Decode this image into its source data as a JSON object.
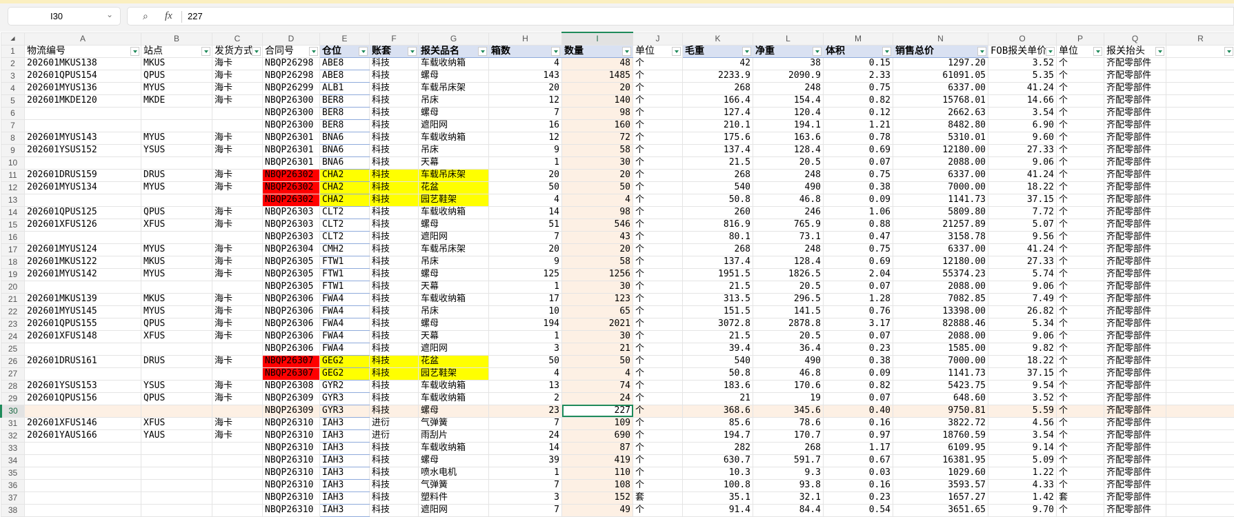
{
  "name_box": "I30",
  "formula_value": "227",
  "icons": {
    "zoom": "zoom-icon",
    "fx": "function-icon",
    "dropdown": "chevron-down-icon",
    "filter": "filter-dropdown-icon"
  },
  "colors": {
    "duplicate_contract": "#ff0000",
    "duplicate_rows": "#ffff00",
    "header_fill": "#d9e1f2",
    "selection": "#1e8a5a",
    "selected_column_fill": "#fdf0e4"
  },
  "fx_label": "fx",
  "columns": [
    "A",
    "B",
    "C",
    "D",
    "E",
    "F",
    "G",
    "H",
    "I",
    "J",
    "K",
    "L",
    "M",
    "N",
    "O",
    "P",
    "Q",
    "R"
  ],
  "headers": [
    "物流编号",
    "站点",
    "发货方式",
    "合同号",
    "仓位",
    "账套",
    "报关品名",
    "箱数",
    "数量",
    "单位",
    "毛重",
    "净重",
    "体积",
    "销售总价",
    "FOB报关单价",
    "单位",
    "报关抬头",
    ""
  ],
  "rows": [
    [
      "202601MKUS138",
      "MKUS",
      "海卡",
      "NBQP26298",
      "ABE8",
      "科技",
      "车载收纳箱",
      "4",
      "48",
      "个",
      "42",
      "38",
      "0.15",
      "1297.20",
      "3.52",
      "个",
      "齐配零部件"
    ],
    [
      "202601QPUS154",
      "QPUS",
      "海卡",
      "NBQP26298",
      "ABE8",
      "科技",
      "螺母",
      "143",
      "1485",
      "个",
      "2233.9",
      "2090.9",
      "2.33",
      "61091.05",
      "5.35",
      "个",
      "齐配零部件"
    ],
    [
      "202601MYUS136",
      "MYUS",
      "海卡",
      "NBQP26299",
      "ALB1",
      "科技",
      "车载吊床架",
      "20",
      "20",
      "个",
      "268",
      "248",
      "0.75",
      "6337.00",
      "41.24",
      "个",
      "齐配零部件"
    ],
    [
      "202601MKDE120",
      "MKDE",
      "海卡",
      "NBQP26300",
      "BER8",
      "科技",
      "吊床",
      "12",
      "140",
      "个",
      "166.4",
      "154.4",
      "0.82",
      "15768.01",
      "14.66",
      "个",
      "齐配零部件"
    ],
    [
      "",
      "",
      "",
      "NBQP26300",
      "BER8",
      "科技",
      "螺母",
      "7",
      "98",
      "个",
      "127.4",
      "120.4",
      "0.12",
      "2662.63",
      "3.54",
      "个",
      "齐配零部件"
    ],
    [
      "",
      "",
      "",
      "NBQP26300",
      "BER8",
      "科技",
      "遮阳网",
      "16",
      "160",
      "个",
      "210.1",
      "194.1",
      "1.21",
      "8482.80",
      "6.90",
      "个",
      "齐配零部件"
    ],
    [
      "202601MYUS143",
      "MYUS",
      "海卡",
      "NBQP26301",
      "BNA6",
      "科技",
      "车载收纳箱",
      "12",
      "72",
      "个",
      "175.6",
      "163.6",
      "0.78",
      "5310.01",
      "9.60",
      "个",
      "齐配零部件"
    ],
    [
      "202601YSUS152",
      "YSUS",
      "海卡",
      "NBQP26301",
      "BNA6",
      "科技",
      "吊床",
      "9",
      "58",
      "个",
      "137.4",
      "128.4",
      "0.69",
      "12180.00",
      "27.33",
      "个",
      "齐配零部件"
    ],
    [
      "",
      "",
      "",
      "NBQP26301",
      "BNA6",
      "科技",
      "天幕",
      "1",
      "30",
      "个",
      "21.5",
      "20.5",
      "0.07",
      "2088.00",
      "9.06",
      "个",
      "齐配零部件"
    ],
    [
      "202601DRUS159",
      "DRUS",
      "海卡",
      "NBQP26302",
      "CHA2",
      "科技",
      "车载吊床架",
      "20",
      "20",
      "个",
      "268",
      "248",
      "0.75",
      "6337.00",
      "41.24",
      "个",
      "齐配零部件"
    ],
    [
      "202601MYUS134",
      "MYUS",
      "海卡",
      "NBQP26302",
      "CHA2",
      "科技",
      "花盆",
      "50",
      "50",
      "个",
      "540",
      "490",
      "0.38",
      "7000.00",
      "18.22",
      "个",
      "齐配零部件"
    ],
    [
      "",
      "",
      "",
      "NBQP26302",
      "CHA2",
      "科技",
      "园艺鞋架",
      "4",
      "4",
      "个",
      "50.8",
      "46.8",
      "0.09",
      "1141.73",
      "37.15",
      "个",
      "齐配零部件"
    ],
    [
      "202601QPUS125",
      "QPUS",
      "海卡",
      "NBQP26303",
      "CLT2",
      "科技",
      "车载收纳箱",
      "14",
      "98",
      "个",
      "260",
      "246",
      "1.06",
      "5809.80",
      "7.72",
      "个",
      "齐配零部件"
    ],
    [
      "202601XFUS126",
      "XFUS",
      "海卡",
      "NBQP26303",
      "CLT2",
      "科技",
      "螺母",
      "51",
      "546",
      "个",
      "816.9",
      "765.9",
      "0.88",
      "21257.89",
      "5.07",
      "个",
      "齐配零部件"
    ],
    [
      "",
      "",
      "",
      "NBQP26303",
      "CLT2",
      "科技",
      "遮阳网",
      "7",
      "43",
      "个",
      "80.1",
      "73.1",
      "0.47",
      "3158.78",
      "9.56",
      "个",
      "齐配零部件"
    ],
    [
      "202601MYUS124",
      "MYUS",
      "海卡",
      "NBQP26304",
      "CMH2",
      "科技",
      "车载吊床架",
      "20",
      "20",
      "个",
      "268",
      "248",
      "0.75",
      "6337.00",
      "41.24",
      "个",
      "齐配零部件"
    ],
    [
      "202601MKUS122",
      "MKUS",
      "海卡",
      "NBQP26305",
      "FTW1",
      "科技",
      "吊床",
      "9",
      "58",
      "个",
      "137.4",
      "128.4",
      "0.69",
      "12180.00",
      "27.33",
      "个",
      "齐配零部件"
    ],
    [
      "202601MYUS142",
      "MYUS",
      "海卡",
      "NBQP26305",
      "FTW1",
      "科技",
      "螺母",
      "125",
      "1256",
      "个",
      "1951.5",
      "1826.5",
      "2.04",
      "55374.23",
      "5.74",
      "个",
      "齐配零部件"
    ],
    [
      "",
      "",
      "",
      "NBQP26305",
      "FTW1",
      "科技",
      "天幕",
      "1",
      "30",
      "个",
      "21.5",
      "20.5",
      "0.07",
      "2088.00",
      "9.06",
      "个",
      "齐配零部件"
    ],
    [
      "202601MKUS139",
      "MKUS",
      "海卡",
      "NBQP26306",
      "FWA4",
      "科技",
      "车载收纳箱",
      "17",
      "123",
      "个",
      "313.5",
      "296.5",
      "1.28",
      "7082.85",
      "7.49",
      "个",
      "齐配零部件"
    ],
    [
      "202601MYUS145",
      "MYUS",
      "海卡",
      "NBQP26306",
      "FWA4",
      "科技",
      "吊床",
      "10",
      "65",
      "个",
      "151.5",
      "141.5",
      "0.76",
      "13398.00",
      "26.82",
      "个",
      "齐配零部件"
    ],
    [
      "202601QPUS155",
      "QPUS",
      "海卡",
      "NBQP26306",
      "FWA4",
      "科技",
      "螺母",
      "194",
      "2021",
      "个",
      "3072.8",
      "2878.8",
      "3.17",
      "82888.46",
      "5.34",
      "个",
      "齐配零部件"
    ],
    [
      "202601XFUS148",
      "XFUS",
      "海卡",
      "NBQP26306",
      "FWA4",
      "科技",
      "天幕",
      "1",
      "30",
      "个",
      "21.5",
      "20.5",
      "0.07",
      "2088.00",
      "9.06",
      "个",
      "齐配零部件"
    ],
    [
      "",
      "",
      "",
      "NBQP26306",
      "FWA4",
      "科技",
      "遮阳网",
      "3",
      "21",
      "个",
      "39.4",
      "36.4",
      "0.23",
      "1585.00",
      "9.82",
      "个",
      "齐配零部件"
    ],
    [
      "202601DRUS161",
      "DRUS",
      "海卡",
      "NBQP26307",
      "GEG2",
      "科技",
      "花盆",
      "50",
      "50",
      "个",
      "540",
      "490",
      "0.38",
      "7000.00",
      "18.22",
      "个",
      "齐配零部件"
    ],
    [
      "",
      "",
      "",
      "NBQP26307",
      "GEG2",
      "科技",
      "园艺鞋架",
      "4",
      "4",
      "个",
      "50.8",
      "46.8",
      "0.09",
      "1141.73",
      "37.15",
      "个",
      "齐配零部件"
    ],
    [
      "202601YSUS153",
      "YSUS",
      "海卡",
      "NBQP26308",
      "GYR2",
      "科技",
      "车载收纳箱",
      "13",
      "74",
      "个",
      "183.6",
      "170.6",
      "0.82",
      "5423.75",
      "9.54",
      "个",
      "齐配零部件"
    ],
    [
      "202601QPUS156",
      "QPUS",
      "海卡",
      "NBQP26309",
      "GYR3",
      "科技",
      "车载收纳箱",
      "2",
      "24",
      "个",
      "21",
      "19",
      "0.07",
      "648.60",
      "3.52",
      "个",
      "齐配零部件"
    ],
    [
      "",
      "",
      "",
      "NBQP26309",
      "GYR3",
      "科技",
      "螺母",
      "23",
      "227",
      "个",
      "368.6",
      "345.6",
      "0.40",
      "9750.81",
      "5.59",
      "个",
      "齐配零部件"
    ],
    [
      "202601XFUS146",
      "XFUS",
      "海卡",
      "NBQP26310",
      "IAH3",
      "进衍",
      "气弹簧",
      "7",
      "109",
      "个",
      "85.6",
      "78.6",
      "0.16",
      "3822.72",
      "4.56",
      "个",
      "齐配零部件"
    ],
    [
      "202601YAUS166",
      "YAUS",
      "海卡",
      "NBQP26310",
      "IAH3",
      "进衍",
      "雨刮片",
      "24",
      "690",
      "个",
      "194.7",
      "170.7",
      "0.97",
      "18760.59",
      "3.54",
      "个",
      "齐配零部件"
    ],
    [
      "",
      "",
      "",
      "NBQP26310",
      "IAH3",
      "科技",
      "车载收纳箱",
      "14",
      "87",
      "个",
      "282",
      "268",
      "1.17",
      "6109.95",
      "9.14",
      "个",
      "齐配零部件"
    ],
    [
      "",
      "",
      "",
      "NBQP26310",
      "IAH3",
      "科技",
      "螺母",
      "39",
      "419",
      "个",
      "630.7",
      "591.7",
      "0.67",
      "16381.95",
      "5.09",
      "个",
      "齐配零部件"
    ],
    [
      "",
      "",
      "",
      "NBQP26310",
      "IAH3",
      "科技",
      "喷水电机",
      "1",
      "110",
      "个",
      "10.3",
      "9.3",
      "0.03",
      "1029.60",
      "1.22",
      "个",
      "齐配零部件"
    ],
    [
      "",
      "",
      "",
      "NBQP26310",
      "IAH3",
      "科技",
      "气弹簧",
      "7",
      "108",
      "个",
      "100.8",
      "93.8",
      "0.16",
      "3593.57",
      "4.33",
      "个",
      "齐配零部件"
    ],
    [
      "",
      "",
      "",
      "NBQP26310",
      "IAH3",
      "科技",
      "塑料件",
      "3",
      "152",
      "套",
      "35.1",
      "32.1",
      "0.23",
      "1657.27",
      "1.42",
      "套",
      "齐配零部件"
    ],
    [
      "",
      "",
      "",
      "NBQP26310",
      "IAH3",
      "科技",
      "遮阳网",
      "7",
      "49",
      "个",
      "91.4",
      "84.4",
      "0.54",
      "3651.65",
      "9.70",
      "个",
      "齐配零部件"
    ]
  ],
  "highlighted_rows": [
    11,
    12,
    13,
    26,
    27
  ],
  "active_cell": {
    "row": 30,
    "col": "I"
  }
}
